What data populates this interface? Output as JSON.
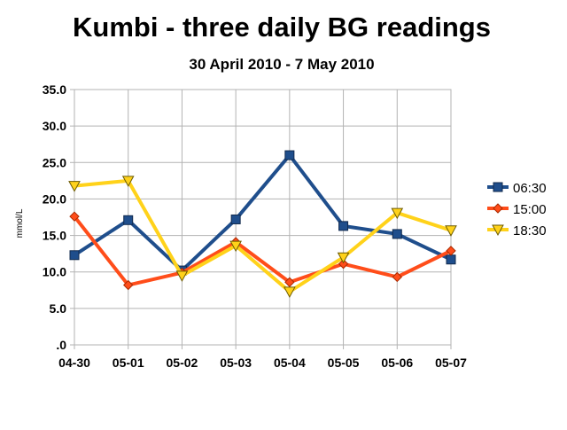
{
  "chart_data": {
    "type": "line",
    "title": "Kumbi - three daily BG readings",
    "subtitle": "30 April 2010 - 7 May 2010",
    "xlabel": "",
    "ylabel": "mmol/L",
    "categories": [
      "04-30",
      "05-01",
      "05-02",
      "05-03",
      "05-04",
      "05-05",
      "05-06",
      "05-07"
    ],
    "ylim": [
      0,
      35
    ],
    "yticks": [
      0,
      5,
      10,
      15,
      20,
      25,
      30,
      35
    ],
    "ytick_labels": [
      ".0",
      "5.0",
      "10.0",
      "15.0",
      "20.0",
      "25.0",
      "30.0",
      "35.0"
    ],
    "grid": true,
    "legend_position": "right",
    "series": [
      {
        "name": "06:30",
        "color": "#1f4e8c",
        "marker": "square",
        "values": [
          12.3,
          17.1,
          10.2,
          17.2,
          26.0,
          16.3,
          15.2,
          11.7
        ]
      },
      {
        "name": "15:00",
        "color": "#ff4d1a",
        "marker": "diamond",
        "values": [
          17.6,
          8.2,
          9.9,
          14.1,
          8.6,
          11.1,
          9.3,
          12.9
        ]
      },
      {
        "name": "18:30",
        "color": "#ffd21a",
        "marker": "triangle-down",
        "values": [
          21.8,
          22.5,
          9.5,
          13.6,
          7.3,
          12.0,
          18.1,
          15.7
        ]
      }
    ]
  }
}
